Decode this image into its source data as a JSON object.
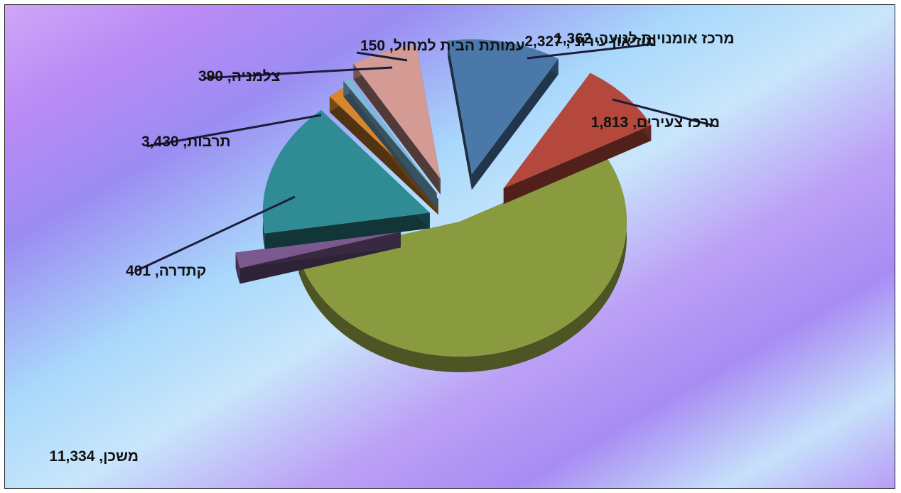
{
  "chart_data": {
    "type": "pie",
    "style": "3d-exploded",
    "legend": "none",
    "slices": [
      {
        "name": "משכן",
        "value": 11334,
        "label": "משכן, 11,334",
        "color": "#8a9a3f"
      },
      {
        "name": "קתדרה",
        "value": 401,
        "label": "קתדרה, 401",
        "color": "#7a5a8e"
      },
      {
        "name": "תרבות",
        "value": 3430,
        "label": "תרבות, 3,430",
        "color": "#2f8c94"
      },
      {
        "name": "צלמניה",
        "value": 390,
        "label": "צלמניה, 390",
        "color": "#d8852e"
      },
      {
        "name": "עמותת הבית למחול",
        "value": 150,
        "label": "עמותת הבית למחול, 150",
        "color": "#7fb7d6"
      },
      {
        "name": "מרכז אומנויות לנוער",
        "value": 1362,
        "label": "מרכז אומנויות לנוער, 1,362",
        "color": "#d49a94"
      },
      {
        "name": "מוזיאון עירוני",
        "value": 2327,
        "label": "מוזיאון עירוני, 2,327",
        "color": "#4a78a8"
      },
      {
        "name": "מרכז צעירים",
        "value": 1813,
        "label": "מרכז צעירים, 1,813",
        "color": "#b4483c"
      }
    ]
  }
}
